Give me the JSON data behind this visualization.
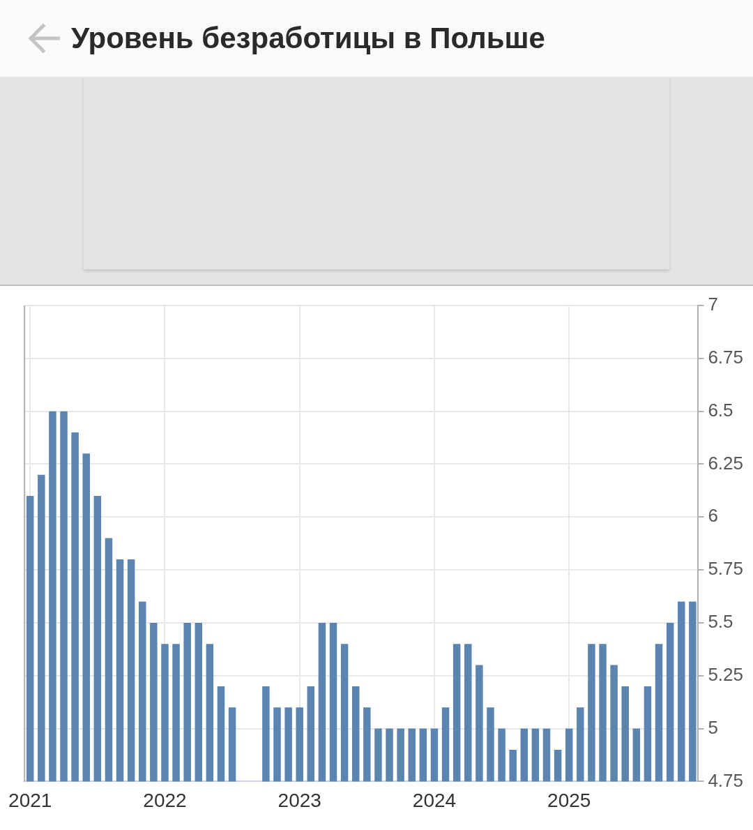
{
  "chart_data": {
    "type": "bar",
    "title": "Уровень безработицы в Польше",
    "categories": [
      "2021",
      null,
      null,
      null,
      null,
      null,
      null,
      null,
      null,
      null,
      null,
      null,
      "2022",
      null,
      null,
      null,
      null,
      null,
      null,
      null,
      null,
      null,
      null,
      null,
      "2023",
      null,
      null,
      null,
      null,
      null,
      null,
      null,
      null,
      null,
      null,
      null,
      "2024",
      null,
      null,
      null,
      null,
      null,
      null,
      null,
      null,
      null,
      null,
      null,
      "2025",
      null,
      null,
      null,
      null,
      null,
      null,
      null,
      null,
      null,
      null,
      null
    ],
    "values": [
      6.1,
      6.2,
      6.5,
      6.5,
      6.4,
      6.3,
      6.1,
      5.9,
      5.8,
      5.8,
      5.6,
      5.5,
      5.4,
      5.4,
      5.5,
      5.5,
      5.4,
      5.2,
      5.1,
      null,
      null,
      5.2,
      5.1,
      5.1,
      5.1,
      5.2,
      5.5,
      5.5,
      5.4,
      5.2,
      5.1,
      5.0,
      5.0,
      5.0,
      5.0,
      5.0,
      5.0,
      5.1,
      5.4,
      5.4,
      5.3,
      5.1,
      5.0,
      4.9,
      5.0,
      5.0,
      5.0,
      4.9,
      5.0,
      5.1,
      5.4,
      5.4,
      5.3,
      5.2,
      5.0,
      5.2,
      5.4,
      5.5,
      5.6,
      5.6
    ],
    "color": "#5b84b1",
    "ylim": [
      4.75,
      7
    ],
    "yticks": [
      4.75,
      5,
      5.25,
      5.5,
      5.75,
      6,
      6.25,
      6.5,
      6.75,
      7
    ],
    "grid": true,
    "legend": false
  }
}
